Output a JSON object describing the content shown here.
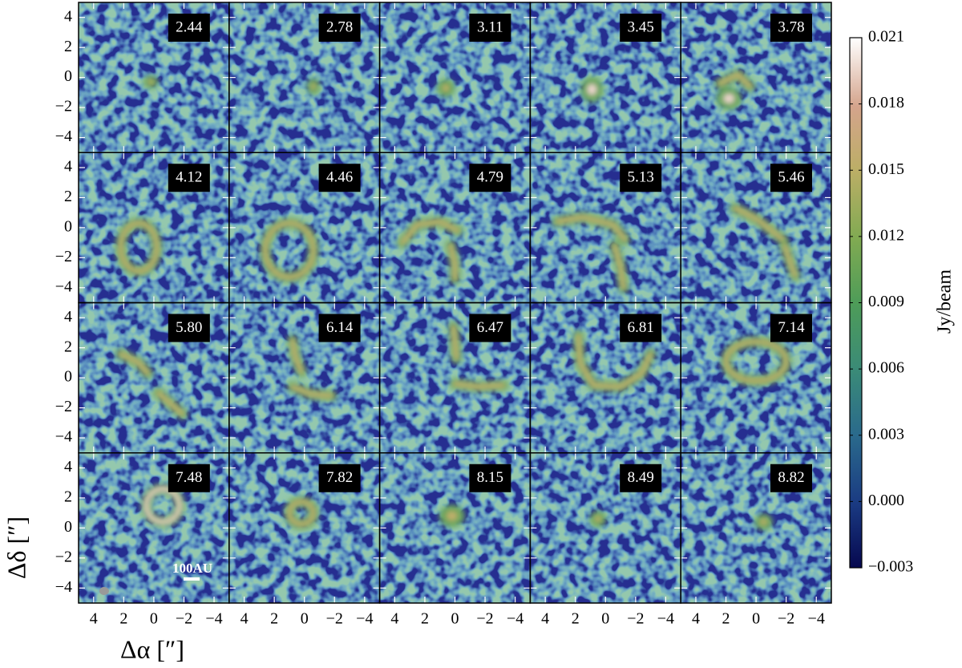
{
  "chart_data": {
    "type": "channel-map",
    "panel_labels": [
      "2.44",
      "2.78",
      "3.11",
      "3.45",
      "3.78",
      "4.12",
      "4.46",
      "4.79",
      "5.13",
      "5.46",
      "5.80",
      "6.14",
      "6.47",
      "6.81",
      "7.14",
      "7.48",
      "7.82",
      "8.15",
      "8.49",
      "8.82"
    ],
    "columns": 5,
    "xlabel": "Δα [″]",
    "ylabel": "Δδ [″]",
    "xlim": [
      5,
      -5
    ],
    "ylim": [
      -5,
      5
    ],
    "xticks": [
      4,
      2,
      0,
      {
        "value": -2,
        "label": "−2"
      },
      {
        "value": -4,
        "label": "−4"
      }
    ],
    "yticks": [
      {
        "value": -4,
        "label": "−4"
      },
      {
        "value": -2,
        "label": "−2"
      },
      0,
      2,
      4
    ],
    "colorbar": {
      "label": "Jy/beam",
      "clim": [
        -0.003,
        0.021
      ],
      "ticks": [
        {
          "value": -0.003,
          "label": "−0.003"
        },
        {
          "value": 0,
          "label": "0.000"
        },
        0.003,
        0.006,
        0.009,
        0.012,
        0.015,
        0.018,
        0.021
      ]
    },
    "scale_bar_label": "100AU"
  }
}
